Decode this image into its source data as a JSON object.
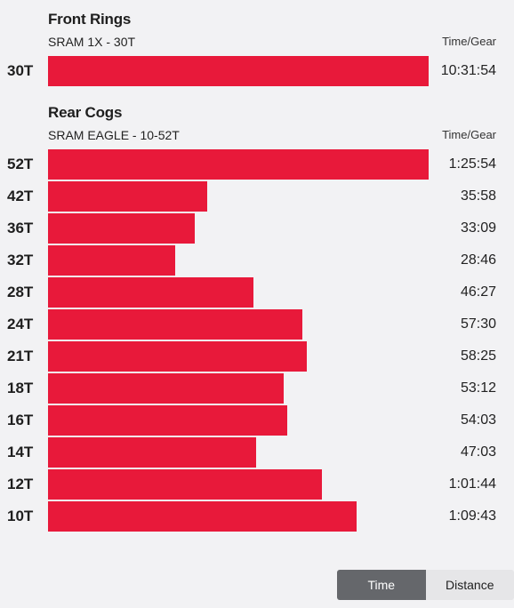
{
  "time_column_label": "Time/Gear",
  "chart_data": [
    {
      "type": "bar",
      "orientation": "horizontal",
      "title": "Front Rings",
      "subtitle": "SRAM 1X - 30T",
      "value_header": "Time/Gear",
      "categories": [
        "30T"
      ],
      "value_labels": [
        "10:31:54"
      ],
      "values_seconds": [
        37914
      ]
    },
    {
      "type": "bar",
      "orientation": "horizontal",
      "title": "Rear Cogs",
      "subtitle": "SRAM EAGLE - 10-52T",
      "value_header": "Time/Gear",
      "categories": [
        "52T",
        "42T",
        "36T",
        "32T",
        "28T",
        "24T",
        "21T",
        "18T",
        "16T",
        "14T",
        "12T",
        "10T"
      ],
      "value_labels": [
        "1:25:54",
        "35:58",
        "33:09",
        "28:46",
        "46:27",
        "57:30",
        "58:25",
        "53:12",
        "54:03",
        "47:03",
        "1:01:44",
        "1:09:43"
      ],
      "values_seconds": [
        5154,
        2158,
        1989,
        1726,
        2787,
        3450,
        3505,
        3192,
        3243,
        2823,
        3704,
        4183
      ]
    }
  ],
  "toggle": {
    "time_label": "Time",
    "distance_label": "Distance",
    "selected": "Time"
  },
  "colors": {
    "bar": "#e8193a",
    "background": "#f2f2f4",
    "toggle_active": "#65676b",
    "toggle_inactive": "#e6e6e8"
  }
}
